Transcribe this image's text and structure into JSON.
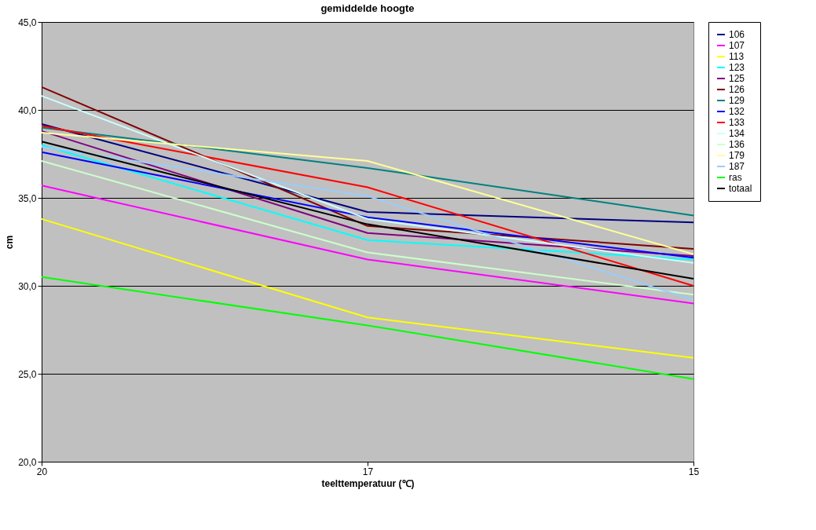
{
  "chart_data": {
    "type": "line",
    "title": "gemiddelde hoogte",
    "xlabel": "teelttemperatuur (℃)",
    "ylabel": "cm",
    "categories": [
      "20",
      "17",
      "15"
    ],
    "ylim": [
      20,
      45
    ],
    "yticks": [
      {
        "value": 20,
        "label": "20,0"
      },
      {
        "value": 25,
        "label": "25,0"
      },
      {
        "value": 30,
        "label": "30,0"
      },
      {
        "value": 35,
        "label": "35,0"
      },
      {
        "value": 40,
        "label": "40,0"
      },
      {
        "value": 45,
        "label": "45,0"
      }
    ],
    "grid": "y",
    "legend": "right",
    "marker": "none",
    "line_style": "solid",
    "series": [
      {
        "name": "106",
        "color": "#000080",
        "values": [
          39.2,
          34.2,
          33.6
        ]
      },
      {
        "name": "107",
        "color": "#ff00ff",
        "values": [
          35.7,
          31.5,
          29.0
        ]
      },
      {
        "name": "113",
        "color": "#ffff00",
        "values": [
          33.8,
          28.2,
          25.9
        ]
      },
      {
        "name": "123",
        "color": "#00ffff",
        "values": [
          38.0,
          32.6,
          31.5
        ]
      },
      {
        "name": "125",
        "color": "#800080",
        "values": [
          38.8,
          33.0,
          31.7
        ]
      },
      {
        "name": "126",
        "color": "#800000",
        "values": [
          41.3,
          33.4,
          32.1
        ]
      },
      {
        "name": "129",
        "color": "#008080",
        "values": [
          39.0,
          36.7,
          34.0
        ]
      },
      {
        "name": "132",
        "color": "#0000ff",
        "values": [
          37.6,
          33.9,
          31.6
        ]
      },
      {
        "name": "133",
        "color": "#ff0000",
        "values": [
          39.1,
          35.6,
          30.0
        ]
      },
      {
        "name": "134",
        "color": "#ccffff",
        "values": [
          40.8,
          33.8,
          31.3
        ]
      },
      {
        "name": "136",
        "color": "#ccffcc",
        "values": [
          37.1,
          31.9,
          29.5
        ]
      },
      {
        "name": "179",
        "color": "#ffff99",
        "values": [
          38.7,
          37.1,
          31.8
        ]
      },
      {
        "name": "187",
        "color": "#99ccff",
        "values": [
          37.9,
          35.1,
          29.2
        ]
      },
      {
        "name": "ras",
        "color": "#00ff00",
        "values": [
          30.5,
          27.75,
          24.7
        ]
      },
      {
        "name": "totaal",
        "color": "#000000",
        "values": [
          38.2,
          33.5,
          30.4
        ]
      }
    ]
  }
}
